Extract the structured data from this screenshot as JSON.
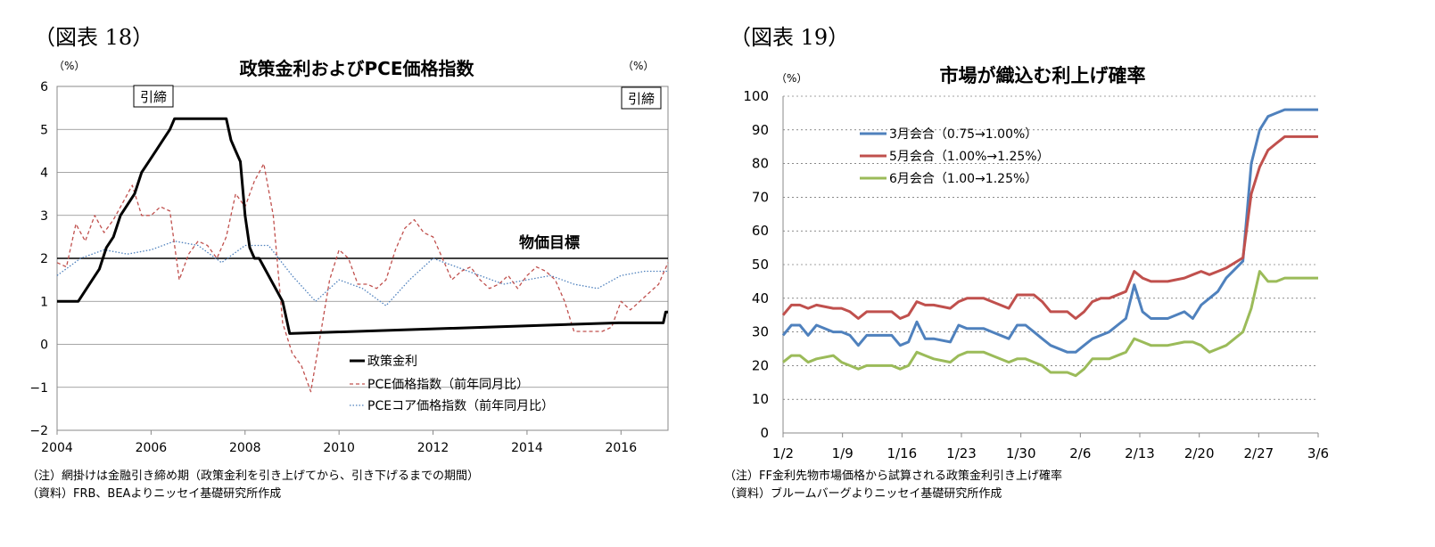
{
  "figure18": {
    "label": "（図表 18）",
    "note_line1": "（注）網掛けは金融引き締め期（政策金利を引き上げてから、引き下げるまでの期間）",
    "note_line2": "（資料）FRB、BEAよりニッセイ基礎研究所作成",
    "target_label": "物価目標",
    "shade_label_1": "引締",
    "shade_label_2": "引締",
    "unit_left": "（%）",
    "unit_right": "（%）"
  },
  "figure19": {
    "label": "（図表 19）",
    "note_line1": "（注）FF金利先物市場価格から試算される政策金利引き上げ確率",
    "note_line2": "（資料）ブルームバーグよりニッセイ基礎研究所作成",
    "unit": "（%）"
  },
  "chart_data": [
    {
      "type": "line",
      "title": "政策金利およびPCE価格指数",
      "ylabel": "（%）",
      "ylim": [
        -2,
        6
      ],
      "xlim": [
        2004,
        2017
      ],
      "x_ticks": [
        "2004",
        "2006",
        "2008",
        "2010",
        "2012",
        "2014",
        "2016"
      ],
      "y_ticks": [
        "-2",
        "-1",
        "0",
        "1",
        "2",
        "3",
        "4",
        "5",
        "6"
      ],
      "grid": true,
      "legend_position": "bottom-center",
      "shaded_periods": [
        {
          "label": "引締",
          "start": 2004.45,
          "end": 2007.7
        },
        {
          "label": "引締",
          "start": 2015.95,
          "end": 2017.0
        }
      ],
      "reference_lines": [
        {
          "label": "物価目標",
          "y": 2
        }
      ],
      "series": [
        {
          "name": "政策金利",
          "style": "solid-thick",
          "color": "#000000",
          "x": [
            2004,
            2004.45,
            2004.6,
            2004.75,
            2004.9,
            2005.05,
            2005.2,
            2005.35,
            2005.5,
            2005.65,
            2005.8,
            2005.95,
            2006.1,
            2006.25,
            2006.4,
            2006.5,
            2007.6,
            2007.7,
            2007.8,
            2007.9,
            2008.0,
            2008.1,
            2008.2,
            2008.3,
            2008.8,
            2008.9,
            2008.95,
            2015.95,
            2016.9,
            2016.95,
            2017.0
          ],
          "values": [
            1.0,
            1.0,
            1.25,
            1.5,
            1.75,
            2.25,
            2.5,
            3.0,
            3.25,
            3.5,
            4.0,
            4.25,
            4.5,
            4.75,
            5.0,
            5.25,
            5.25,
            4.75,
            4.5,
            4.25,
            3.0,
            2.25,
            2.0,
            2.0,
            1.0,
            0.5,
            0.25,
            0.5,
            0.5,
            0.75,
            0.75
          ]
        },
        {
          "name": "PCE価格指数（前年同月比）",
          "style": "dashed",
          "color": "#c0504d",
          "x": [
            2004,
            2004.2,
            2004.4,
            2004.6,
            2004.8,
            2005.0,
            2005.2,
            2005.4,
            2005.6,
            2005.8,
            2006.0,
            2006.2,
            2006.4,
            2006.6,
            2006.8,
            2007.0,
            2007.2,
            2007.4,
            2007.6,
            2007.8,
            2008.0,
            2008.2,
            2008.4,
            2008.6,
            2008.8,
            2009.0,
            2009.2,
            2009.4,
            2009.6,
            2009.8,
            2010.0,
            2010.2,
            2010.4,
            2010.6,
            2010.8,
            2011.0,
            2011.2,
            2011.4,
            2011.6,
            2011.8,
            2012.0,
            2012.2,
            2012.4,
            2012.6,
            2012.8,
            2013.0,
            2013.2,
            2013.4,
            2013.6,
            2013.8,
            2014.0,
            2014.2,
            2014.4,
            2014.6,
            2014.8,
            2015.0,
            2015.2,
            2015.4,
            2015.6,
            2015.8,
            2016.0,
            2016.2,
            2016.4,
            2016.6,
            2016.8,
            2017.0
          ],
          "values": [
            1.9,
            1.8,
            2.8,
            2.4,
            3.0,
            2.6,
            2.9,
            3.3,
            3.7,
            3.0,
            3.0,
            3.2,
            3.1,
            1.5,
            2.1,
            2.4,
            2.3,
            2.0,
            2.5,
            3.5,
            3.2,
            3.8,
            4.2,
            3.0,
            0.5,
            -0.2,
            -0.5,
            -1.1,
            0.2,
            1.5,
            2.2,
            2.0,
            1.4,
            1.4,
            1.3,
            1.5,
            2.2,
            2.7,
            2.9,
            2.6,
            2.5,
            2.0,
            1.5,
            1.7,
            1.8,
            1.5,
            1.3,
            1.4,
            1.6,
            1.3,
            1.6,
            1.8,
            1.7,
            1.5,
            1.0,
            0.3,
            0.3,
            0.3,
            0.3,
            0.4,
            1.0,
            0.8,
            1.0,
            1.2,
            1.4,
            1.9
          ]
        },
        {
          "name": "PCEコア価格指数（前年同月比）",
          "style": "dotted",
          "color": "#4f81bd",
          "x": [
            2004,
            2004.5,
            2005.0,
            2005.5,
            2006.0,
            2006.5,
            2007.0,
            2007.5,
            2008.0,
            2008.5,
            2009.0,
            2009.5,
            2010.0,
            2010.5,
            2011.0,
            2011.5,
            2012.0,
            2012.5,
            2013.0,
            2013.5,
            2014.0,
            2014.5,
            2015.0,
            2015.5,
            2016.0,
            2016.5,
            2017.0
          ],
          "values": [
            1.6,
            2.0,
            2.2,
            2.1,
            2.2,
            2.4,
            2.3,
            1.9,
            2.3,
            2.3,
            1.6,
            1.0,
            1.5,
            1.3,
            0.9,
            1.5,
            2.0,
            1.8,
            1.6,
            1.4,
            1.5,
            1.6,
            1.4,
            1.3,
            1.6,
            1.7,
            1.7
          ]
        }
      ]
    },
    {
      "type": "line",
      "title": "市場が織込む利上げ確率",
      "ylabel": "（%）",
      "ylim": [
        0,
        100
      ],
      "x_ticks": [
        "1/2",
        "1/9",
        "1/16",
        "1/23",
        "1/30",
        "2/6",
        "2/13",
        "2/20",
        "2/27",
        "3/6"
      ],
      "y_ticks": [
        "0",
        "10",
        "20",
        "30",
        "40",
        "50",
        "60",
        "70",
        "80",
        "90",
        "100"
      ],
      "grid": true,
      "legend_position": "top-left",
      "x": [
        0,
        1,
        2,
        3,
        4,
        6,
        7,
        8,
        9,
        10,
        11,
        13,
        14,
        15,
        16,
        17,
        18,
        20,
        21,
        22,
        23,
        24,
        25,
        27,
        28,
        29,
        30,
        31,
        32,
        34,
        35,
        36,
        37,
        38,
        39,
        41,
        42,
        43,
        44,
        45,
        46,
        48,
        49,
        50,
        51,
        52,
        53,
        55,
        56,
        57,
        58,
        59,
        60,
        62,
        63,
        64
      ],
      "series": [
        {
          "name": "3月会合（0.75→1.00%）",
          "color": "#4f81bd",
          "values": [
            29,
            32,
            32,
            29,
            32,
            30,
            30,
            29,
            26,
            29,
            29,
            29,
            26,
            27,
            33,
            28,
            28,
            27,
            32,
            31,
            31,
            31,
            30,
            28,
            32,
            32,
            30,
            28,
            26,
            24,
            24,
            26,
            28,
            29,
            30,
            34,
            44,
            36,
            34,
            34,
            34,
            36,
            34,
            38,
            40,
            42,
            46,
            51,
            80,
            90,
            94,
            95,
            96,
            96,
            96,
            96
          ]
        },
        {
          "name": "5月会合（1.00%→1.25%）",
          "color": "#c0504d",
          "values": [
            35,
            38,
            38,
            37,
            38,
            37,
            37,
            36,
            34,
            36,
            36,
            36,
            34,
            35,
            39,
            38,
            38,
            37,
            39,
            40,
            40,
            40,
            39,
            37,
            41,
            41,
            41,
            39,
            36,
            36,
            34,
            36,
            39,
            40,
            40,
            42,
            48,
            46,
            45,
            45,
            45,
            46,
            47,
            48,
            47,
            48,
            49,
            52,
            71,
            79,
            84,
            86,
            88,
            88,
            88,
            88
          ]
        },
        {
          "name": "6月会合（1.00→1.25%）",
          "color": "#9bbb59",
          "values": [
            21,
            23,
            23,
            21,
            22,
            23,
            21,
            20,
            19,
            20,
            20,
            20,
            19,
            20,
            24,
            23,
            22,
            21,
            23,
            24,
            24,
            24,
            23,
            21,
            22,
            22,
            21,
            20,
            18,
            18,
            17,
            19,
            22,
            22,
            22,
            24,
            28,
            27,
            26,
            26,
            26,
            27,
            27,
            26,
            24,
            25,
            26,
            30,
            37,
            48,
            45,
            45,
            46,
            46,
            46,
            46
          ]
        }
      ]
    }
  ]
}
